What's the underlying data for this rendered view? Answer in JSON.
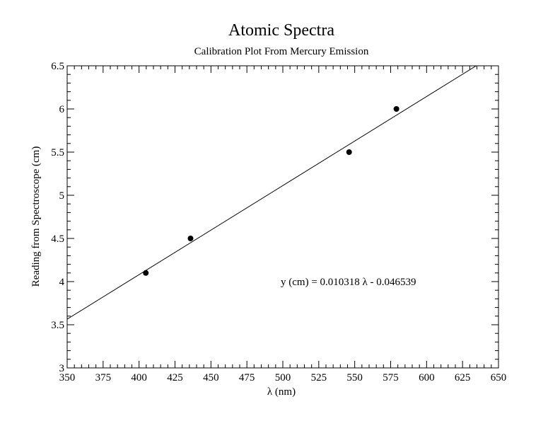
{
  "chart_data": {
    "type": "scatter",
    "title": "Atomic Spectra",
    "subtitle": "Calibration Plot From Mercury Emission",
    "xlabel": "λ  (nm)",
    "ylabel": "Reading from Spectroscope (cm)",
    "xlim": [
      350,
      650
    ],
    "ylim": [
      3,
      6.5
    ],
    "x_ticks": [
      "350",
      "375",
      "400",
      "425",
      "450",
      "475",
      "500",
      "525",
      "550",
      "575",
      "600",
      "625",
      "650"
    ],
    "y_ticks": [
      "3",
      "3.5",
      "4",
      "4.5",
      "5",
      "5.5",
      "6",
      "6.5"
    ],
    "x_tick_values": [
      350,
      375,
      400,
      425,
      450,
      475,
      500,
      525,
      550,
      575,
      600,
      625,
      650
    ],
    "y_tick_values": [
      3,
      3.5,
      4,
      4.5,
      5,
      5.5,
      6,
      6.5
    ],
    "x_minor_step": 5,
    "y_minor_step": 0.1,
    "grid": false,
    "series": [
      {
        "points": [
          {
            "x": 404.7,
            "y": 4.1
          },
          {
            "x": 435.8,
            "y": 4.5
          },
          {
            "x": 546.1,
            "y": 5.5
          },
          {
            "x": 579.0,
            "y": 6.0
          }
        ]
      }
    ],
    "fit": {
      "slope": 0.010318,
      "intercept": -0.046539
    },
    "annotation": "y (cm) = 0.010318 λ - 0.046539",
    "colors": {
      "points": "#000000",
      "line": "#000000",
      "axes": "#000000"
    }
  }
}
